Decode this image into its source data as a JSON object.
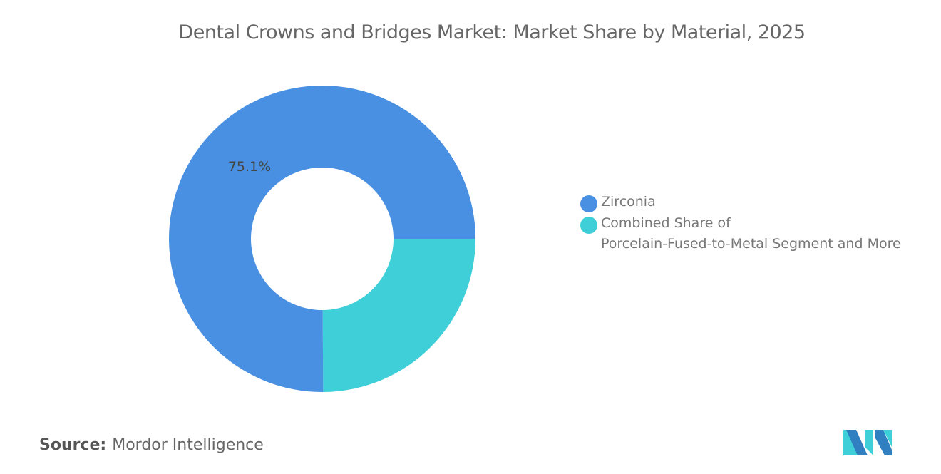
{
  "chart_data": {
    "type": "pie",
    "title": "Dental Crowns and Bridges Market: Market Share by Material, 2025",
    "slices": [
      {
        "name": "Zirconia",
        "value": 75.1,
        "label": "75.1%",
        "color": "#4a90e2"
      },
      {
        "name": "Combined Share of\nPorcelain-Fused-to-Metal Segment and More",
        "value": 24.9,
        "label": "",
        "color": "#3ecfd8"
      }
    ],
    "donut": true,
    "legend_position": "right"
  },
  "source": {
    "label": "Source:",
    "value": "Mordor Intelligence"
  },
  "logo": {
    "name": "Mordor Intelligence logo"
  }
}
